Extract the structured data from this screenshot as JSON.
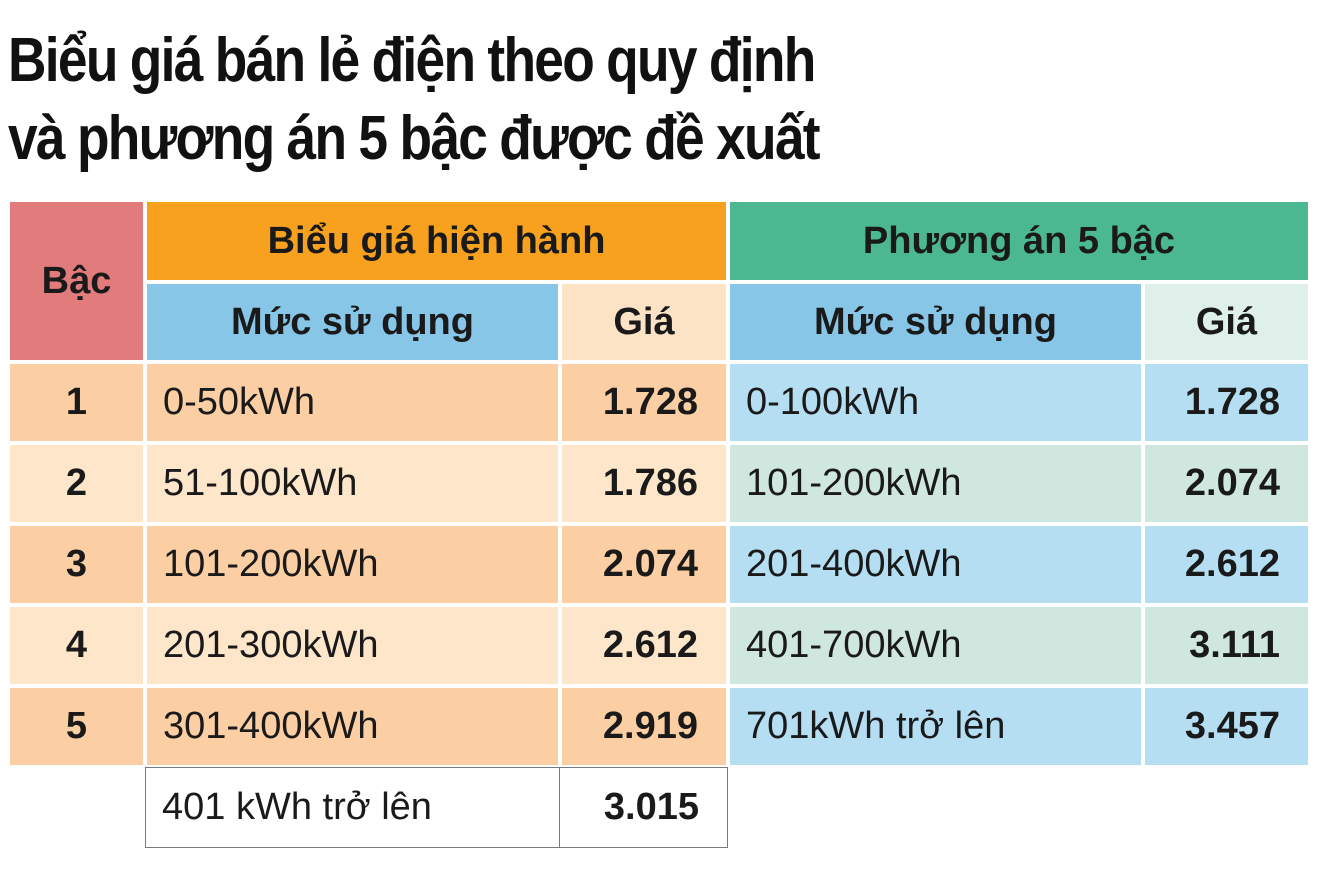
{
  "title": {
    "line1": "Biểu giá bán lẻ điện theo quy định",
    "line2": "và phương án 5 bậc được đề xuất"
  },
  "headers": {
    "bac": "Bậc",
    "current": "Biểu giá hiện hành",
    "proposal": "Phương án 5 bậc",
    "usage_current": "Mức sử dụng",
    "price_current": "Giá",
    "usage_proposal": "Mức sử dụng",
    "price_proposal": "Giá"
  },
  "rows": [
    {
      "bac": "1",
      "cur_usage": "0-50kWh",
      "cur_price": "1.728",
      "new_usage": "0-100kWh",
      "new_price": "1.728"
    },
    {
      "bac": "2",
      "cur_usage": "51-100kWh",
      "cur_price": "1.786",
      "new_usage": "101-200kWh",
      "new_price": "2.074"
    },
    {
      "bac": "3",
      "cur_usage": "101-200kWh",
      "cur_price": "2.074",
      "new_usage": "201-400kWh",
      "new_price": "2.612"
    },
    {
      "bac": "4",
      "cur_usage": "201-300kWh",
      "cur_price": "2.612",
      "new_usage": "401-700kWh",
      "new_price": "3.111"
    },
    {
      "bac": "5",
      "cur_usage": "301-400kWh",
      "cur_price": "2.919",
      "new_usage": "701kWh trở lên",
      "new_price": "3.457"
    }
  ],
  "extra_row": {
    "cur_usage": "401 kWh trở lên",
    "cur_price": "3.015"
  },
  "colors": {
    "bac_header": "#e27b7b",
    "current_header": "#f7a11e",
    "proposal_header": "#4bb88f",
    "blue_subheader": "#88c6e8"
  }
}
